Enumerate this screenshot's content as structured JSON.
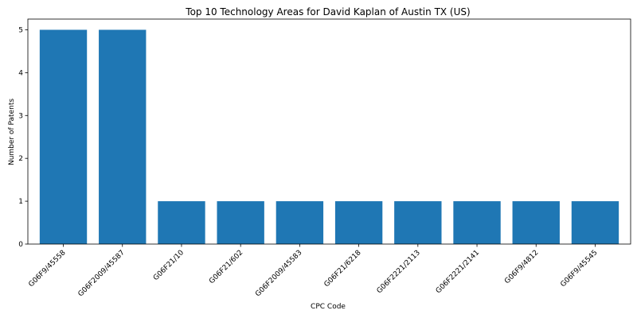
{
  "chart_data": {
    "type": "bar",
    "title": "Top 10 Technology Areas for David Kaplan of Austin TX (US)",
    "xlabel": "CPC Code",
    "ylabel": "Number of Patents",
    "categories": [
      "G06F9/45558",
      "G06F2009/45587",
      "G06F21/10",
      "G06F21/602",
      "G06F2009/45583",
      "G06F21/6218",
      "G06F2221/2113",
      "G06F2221/2141",
      "G06F9/4812",
      "G06F9/45545"
    ],
    "values": [
      5,
      5,
      1,
      1,
      1,
      1,
      1,
      1,
      1,
      1
    ],
    "ylim": [
      0,
      5.25
    ],
    "yticks": [
      0,
      1,
      2,
      3,
      4,
      5
    ],
    "grid": false,
    "bar_color": "#1f77b4"
  }
}
